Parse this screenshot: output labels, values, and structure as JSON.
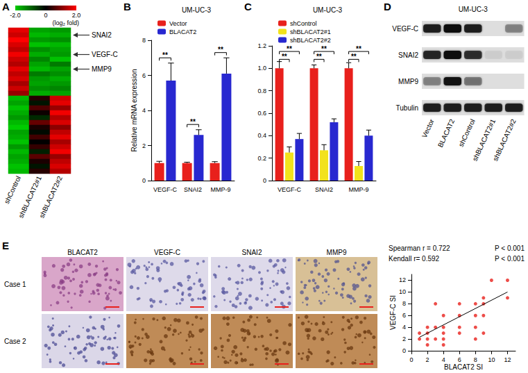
{
  "chart_data": [
    {
      "type": "heatmap",
      "categories": [
        "shControl",
        "shBLACAT2#1",
        "shBLACAT2#2"
      ],
      "cells": [
        [
          1.8,
          -1.6,
          -1.5
        ],
        [
          1.6,
          -1.8,
          -1.7
        ],
        [
          2.0,
          -1.5,
          -1.4
        ],
        [
          1.7,
          -1.9,
          -1.8
        ],
        [
          1.5,
          -1.4,
          -1.6
        ],
        [
          1.9,
          -1.7,
          -1.5
        ],
        [
          1.6,
          -1.3,
          -1.9
        ],
        [
          1.4,
          -1.6,
          -1.2
        ],
        [
          1.8,
          -1.8,
          -1.6
        ],
        [
          1.5,
          -1.2,
          -1.4
        ],
        [
          1.7,
          -1.5,
          -1.7
        ],
        [
          1.3,
          -1.6,
          -1.5
        ],
        [
          1.6,
          -1.4,
          -1.3
        ],
        [
          1.2,
          -1.7,
          -1.6
        ],
        [
          -1.8,
          0.3,
          1.6
        ],
        [
          -1.6,
          -0.2,
          1.8
        ],
        [
          -1.9,
          0.6,
          1.2
        ],
        [
          -1.7,
          0.1,
          1.9
        ],
        [
          -1.5,
          -0.4,
          1.4
        ],
        [
          -1.8,
          0.8,
          1.7
        ],
        [
          -2.0,
          0.2,
          1.1
        ],
        [
          -1.6,
          -0.1,
          1.5
        ],
        [
          -1.7,
          0.5,
          1.8
        ],
        [
          -1.9,
          0.0,
          1.3
        ],
        [
          -1.5,
          0.4,
          1.6
        ],
        [
          -1.8,
          -0.3,
          1.9
        ],
        [
          -1.6,
          0.7,
          1.2
        ],
        [
          -1.7,
          0.2,
          1.5
        ],
        [
          -1.9,
          -0.2,
          1.7
        ],
        [
          -1.8,
          0.3,
          1.4
        ]
      ],
      "colorbar": {
        "range": [
          -2,
          2
        ],
        "ticks": [
          {
            "value": -2,
            "label": "-2.0"
          },
          0,
          {
            "value": 2,
            "label": "2.0"
          }
        ],
        "label": "(log₂ fold)",
        "colors": [
          "#00cc00",
          "#000000",
          "#ff0000"
        ]
      },
      "annotations": [
        {
          "text": "SNAI2",
          "row": 1
        },
        {
          "text": "VEGF-C",
          "row": 5
        },
        {
          "text": "MMP9",
          "row": 8
        }
      ],
      "tick_labels": "x"
    },
    {
      "type": "bar",
      "title": "UM-UC-3",
      "categories": [
        "VEGF-C",
        "SNAI2",
        "MMP-9"
      ],
      "series": [
        {
          "name": "Vector",
          "color": "#e8201c",
          "values": [
            1,
            1,
            1
          ],
          "errors": [
            0.1,
            0.05,
            0.08
          ]
        },
        {
          "name": "BLACAT2",
          "color": "#2828d0",
          "values": [
            5.7,
            2.6,
            6.1
          ],
          "errors": [
            1.0,
            0.3,
            0.9
          ]
        }
      ],
      "ylabel": "Relative mRNA expression",
      "ylim": [
        0,
        8
      ],
      "yticks": [
        0,
        2,
        4,
        6,
        8
      ],
      "legend": "top-left",
      "grid": false,
      "significance": [
        {
          "category": 0,
          "from": 0,
          "to": 1,
          "y": 7.0,
          "label": "**"
        },
        {
          "category": 1,
          "from": 0,
          "to": 1,
          "y": 3.2,
          "label": "**"
        },
        {
          "category": 2,
          "from": 0,
          "to": 1,
          "y": 7.3,
          "label": "**"
        }
      ]
    },
    {
      "type": "bar",
      "title": "UM-UC-3",
      "categories": [
        "VEGF-C",
        "SNAI2",
        "MMP-9"
      ],
      "series": [
        {
          "name": "shControl",
          "color": "#e8201c",
          "values": [
            1,
            1,
            1
          ],
          "errors": [
            0.06,
            0.03,
            0.05
          ]
        },
        {
          "name": "shBLACAT2#1",
          "color": "#f2e21c",
          "values": [
            0.25,
            0.27,
            0.13
          ],
          "errors": [
            0.05,
            0.05,
            0.04
          ]
        },
        {
          "name": "shBLACAT2#2",
          "color": "#2828d0",
          "values": [
            0.37,
            0.52,
            0.4
          ],
          "errors": [
            0.05,
            0.03,
            0.05
          ]
        }
      ],
      "ylim": [
        0,
        1.2
      ],
      "yticks": [
        0,
        0.2,
        0.4,
        0.6,
        0.8,
        {
          "value": 1,
          "label": "1.0"
        },
        1.2
      ],
      "legend": "top-left",
      "grid": false,
      "significance": [
        {
          "category": 0,
          "from": 0,
          "to": 1,
          "y": 1.08,
          "label": "**"
        },
        {
          "category": 0,
          "from": 0,
          "to": 2,
          "y": 1.15,
          "label": "**"
        },
        {
          "category": 1,
          "from": 0,
          "to": 1,
          "y": 1.08,
          "label": "**"
        },
        {
          "category": 1,
          "from": 0,
          "to": 2,
          "y": 1.15,
          "label": "**"
        },
        {
          "category": 2,
          "from": 0,
          "to": 1,
          "y": 1.08,
          "label": "**"
        },
        {
          "category": 2,
          "from": 0,
          "to": 2,
          "y": 1.15,
          "label": "**"
        }
      ]
    },
    {
      "type": "scatter",
      "x": [
        1,
        1,
        2,
        2,
        2,
        2,
        3,
        3,
        3,
        4,
        4,
        4,
        4,
        4,
        6,
        6,
        6,
        6,
        8,
        8,
        8,
        8,
        9,
        9,
        9,
        9,
        12,
        12,
        10
      ],
      "y": [
        2,
        3,
        1,
        2,
        3,
        4,
        2,
        4,
        8,
        1,
        2,
        3,
        4,
        6,
        3,
        4,
        6,
        8,
        2,
        4,
        6,
        8,
        3,
        6,
        8,
        9,
        9,
        12,
        12
      ],
      "color": "#e8201c",
      "marker": "circle",
      "xlabel": "BLACAT2 SI",
      "ylabel": "VEGF-C SI",
      "xlim": [
        0,
        13
      ],
      "ylim": [
        0,
        13
      ],
      "xticks": [
        0,
        2,
        4,
        6,
        8,
        10,
        12
      ],
      "yticks": [
        0,
        2,
        4,
        6,
        8,
        10,
        12
      ],
      "fit_line": {
        "x": [
          1,
          12
        ],
        "y": [
          2.3,
          10
        ]
      },
      "stats": [
        {
          "text": "Spearman r = 0.722",
          "p": "P < 0.001"
        },
        {
          "text": "Kendall r= 0.592",
          "p": "P < 0.001"
        }
      ],
      "grid": false
    }
  ],
  "panels": {
    "labels": [
      "A",
      "B",
      "C",
      "D",
      "E"
    ],
    "blot": {
      "title": "UM-UC-3",
      "lanes": [
        "Vector",
        "BLACAT2",
        "shControl",
        "shBLACAT2#1",
        "shBLACAT2#2"
      ],
      "rows": [
        {
          "label": "VEGF-C",
          "intensity": [
            0.85,
            1.0,
            0.85,
            0.0,
            0.3
          ]
        },
        {
          "label": "SNAI2",
          "intensity": [
            0.8,
            1.0,
            0.75,
            0.05,
            0.05
          ]
        },
        {
          "label": "MMP9",
          "intensity": [
            0.3,
            0.95,
            0.4,
            0.0,
            0.0
          ]
        },
        {
          "label": "Tubulin",
          "intensity": [
            0.85,
            0.85,
            0.85,
            0.85,
            0.85
          ]
        }
      ]
    },
    "ihc": {
      "columns": [
        "BLACAT2",
        "VEGF-C",
        "SNAI2",
        "MMP9"
      ],
      "rows": [
        "Case 1",
        "Case 2"
      ]
    }
  }
}
